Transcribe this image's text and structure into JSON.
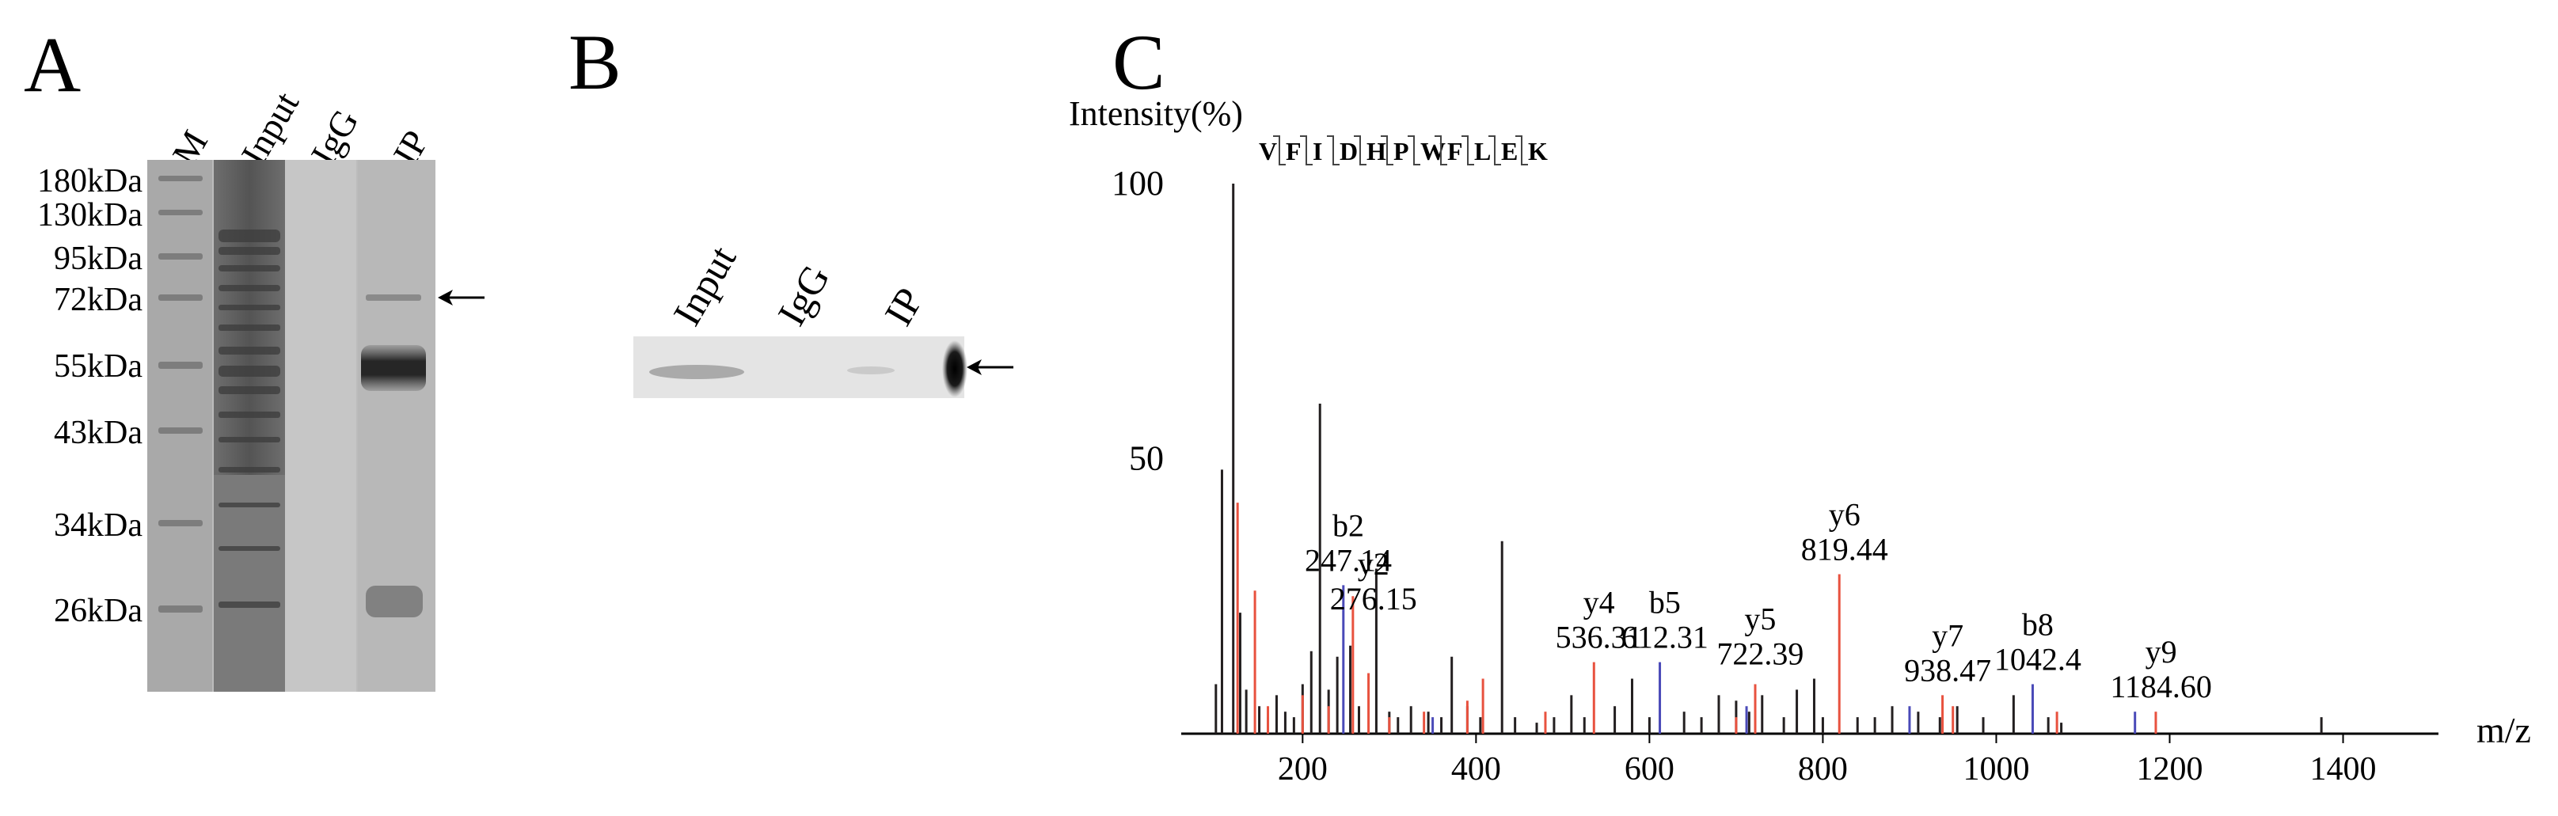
{
  "panels": {
    "a": {
      "letter": "A",
      "lanes": [
        "M",
        "Input",
        "IgG",
        "IP"
      ],
      "markers": [
        "180kDa",
        "130kDa",
        "95kDa",
        "72kDa",
        "55kDa",
        "43kDa",
        "34kDa",
        "26kDa"
      ]
    },
    "b": {
      "letter": "B",
      "lanes": [
        "Input",
        "IgG",
        "IP"
      ]
    },
    "c": {
      "letter": "C",
      "ylabel": "Intensity(%)",
      "xlabel": "m/z",
      "peptide": [
        "V",
        "F",
        "I",
        "D",
        "H",
        "P",
        "W",
        "F",
        "L",
        "E",
        "K"
      ]
    }
  },
  "chart_data": {
    "type": "bar",
    "title": "",
    "xlabel": "m/z",
    "ylabel": "Intensity(%)",
    "xlim": [
      60,
      1510
    ],
    "ylim": [
      0,
      100
    ],
    "x_ticks": [
      200,
      400,
      600,
      800,
      1000,
      1200,
      1400
    ],
    "y_ticks": [
      50,
      100
    ],
    "colors": {
      "black": "#231f20",
      "red": "#e8523f",
      "blue": "#4a4ab8"
    },
    "annotations": [
      {
        "ion": "b2",
        "mz": "247.14",
        "x": 247.14,
        "y": 27
      },
      {
        "ion": "y2",
        "mz": "276.15",
        "x": 276.15,
        "y": 20
      },
      {
        "ion": "y4",
        "mz": "536.31",
        "x": 536.31,
        "y": 13
      },
      {
        "ion": "b5",
        "mz": "612.31",
        "x": 612.31,
        "y": 13
      },
      {
        "ion": "y5",
        "mz": "722.39",
        "x": 722.39,
        "y": 10
      },
      {
        "ion": "y6",
        "mz": "819.44",
        "x": 819.44,
        "y": 29
      },
      {
        "ion": "y7",
        "mz": "938.47",
        "x": 938.47,
        "y": 7
      },
      {
        "ion": "b8",
        "mz": "1042.4",
        "x": 1042.4,
        "y": 9
      },
      {
        "ion": "y9",
        "mz": "1184.60",
        "x": 1184.6,
        "y": 4
      }
    ],
    "series": [
      {
        "color": "black",
        "peaks": [
          [
            100,
            9
          ],
          [
            107,
            48
          ],
          [
            120,
            100
          ],
          [
            128,
            22
          ],
          [
            135,
            8
          ],
          [
            150,
            5
          ],
          [
            160,
            3
          ],
          [
            170,
            7
          ],
          [
            180,
            4
          ],
          [
            190,
            3
          ],
          [
            200,
            9
          ],
          [
            210,
            15
          ],
          [
            220,
            60
          ],
          [
            230,
            8
          ],
          [
            240,
            14
          ],
          [
            255,
            16
          ],
          [
            265,
            5
          ],
          [
            285,
            30
          ],
          [
            300,
            4
          ],
          [
            310,
            3
          ],
          [
            325,
            5
          ],
          [
            345,
            4
          ],
          [
            360,
            3
          ],
          [
            372,
            14
          ],
          [
            390,
            5
          ],
          [
            405,
            3
          ],
          [
            430,
            35
          ],
          [
            445,
            3
          ],
          [
            470,
            2
          ],
          [
            490,
            3
          ],
          [
            510,
            7
          ],
          [
            525,
            3
          ],
          [
            560,
            5
          ],
          [
            580,
            10
          ],
          [
            600,
            3
          ],
          [
            640,
            4
          ],
          [
            660,
            3
          ],
          [
            680,
            7
          ],
          [
            700,
            6
          ],
          [
            715,
            4
          ],
          [
            730,
            7
          ],
          [
            755,
            3
          ],
          [
            770,
            8
          ],
          [
            790,
            10
          ],
          [
            800,
            3
          ],
          [
            840,
            3
          ],
          [
            860,
            3
          ],
          [
            880,
            5
          ],
          [
            910,
            4
          ],
          [
            935,
            3
          ],
          [
            955,
            5
          ],
          [
            985,
            3
          ],
          [
            1020,
            7
          ],
          [
            1060,
            3
          ],
          [
            1075,
            2
          ],
          [
            1375,
            3
          ]
        ]
      },
      {
        "color": "red",
        "peaks": [
          [
            125,
            42
          ],
          [
            145,
            26
          ],
          [
            160,
            5
          ],
          [
            200,
            7
          ],
          [
            230,
            5
          ],
          [
            258,
            25
          ],
          [
            276,
            11
          ],
          [
            300,
            3
          ],
          [
            340,
            4
          ],
          [
            390,
            6
          ],
          [
            408,
            10
          ],
          [
            480,
            4
          ],
          [
            536,
            13
          ],
          [
            700,
            3
          ],
          [
            722,
            9
          ],
          [
            819,
            29
          ],
          [
            938,
            7
          ],
          [
            950,
            5
          ],
          [
            1070,
            4
          ],
          [
            1184,
            4
          ]
        ]
      },
      {
        "color": "blue",
        "peaks": [
          [
            247,
            27
          ],
          [
            350,
            3
          ],
          [
            612,
            13
          ],
          [
            712,
            5
          ],
          [
            900,
            5
          ],
          [
            1042,
            9
          ],
          [
            1160,
            4
          ]
        ]
      }
    ]
  }
}
